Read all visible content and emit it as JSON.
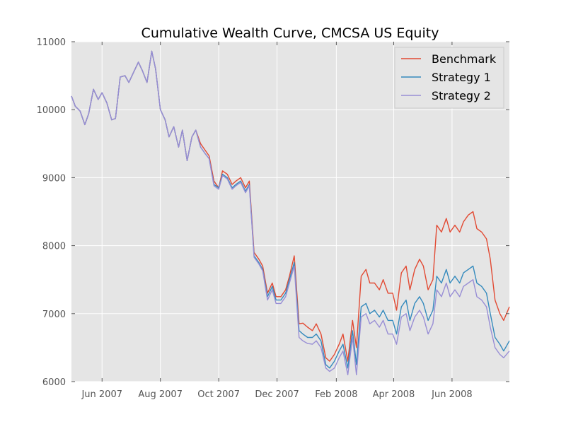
{
  "chart_data": {
    "type": "line",
    "title": "Cumulative Wealth Curve, CMCSA US Equity",
    "xlabel": "",
    "ylabel": "",
    "x_range": [
      "2007-04-30",
      "2008-07-31"
    ],
    "ylim": [
      6000,
      11000
    ],
    "y_ticks": [
      6000,
      7000,
      8000,
      9000,
      10000,
      11000
    ],
    "x_ticks": [
      {
        "date": "2007-06-01",
        "label": "Jun 2007"
      },
      {
        "date": "2007-08-01",
        "label": "Aug 2007"
      },
      {
        "date": "2007-10-01",
        "label": "Oct 2007"
      },
      {
        "date": "2007-12-01",
        "label": "Dec 2007"
      },
      {
        "date": "2008-02-01",
        "label": "Feb 2008"
      },
      {
        "date": "2008-04-01",
        "label": "Apr 2008"
      },
      {
        "date": "2008-06-01",
        "label": "Jun 2008"
      }
    ],
    "grid": true,
    "legend_position": "top-right",
    "x": [
      "2007-04-30",
      "2007-05-04",
      "2007-05-09",
      "2007-05-14",
      "2007-05-18",
      "2007-05-23",
      "2007-05-28",
      "2007-06-01",
      "2007-06-06",
      "2007-06-11",
      "2007-06-15",
      "2007-06-20",
      "2007-06-25",
      "2007-06-29",
      "2007-07-04",
      "2007-07-09",
      "2007-07-13",
      "2007-07-18",
      "2007-07-23",
      "2007-07-27",
      "2007-08-01",
      "2007-08-06",
      "2007-08-10",
      "2007-08-15",
      "2007-08-20",
      "2007-08-24",
      "2007-08-29",
      "2007-09-03",
      "2007-09-07",
      "2007-09-12",
      "2007-09-17",
      "2007-09-21",
      "2007-09-26",
      "2007-10-01",
      "2007-10-05",
      "2007-10-10",
      "2007-10-15",
      "2007-10-19",
      "2007-10-24",
      "2007-10-29",
      "2007-11-02",
      "2007-11-07",
      "2007-11-12",
      "2007-11-16",
      "2007-11-21",
      "2007-11-26",
      "2007-11-30",
      "2007-12-05",
      "2007-12-10",
      "2007-12-14",
      "2007-12-19",
      "2007-12-24",
      "2007-12-28",
      "2008-01-02",
      "2008-01-07",
      "2008-01-11",
      "2008-01-16",
      "2008-01-21",
      "2008-01-25",
      "2008-01-30",
      "2008-02-04",
      "2008-02-08",
      "2008-02-13",
      "2008-02-18",
      "2008-02-22",
      "2008-02-27",
      "2008-03-03",
      "2008-03-07",
      "2008-03-12",
      "2008-03-17",
      "2008-03-21",
      "2008-03-26",
      "2008-03-31",
      "2008-04-04",
      "2008-04-09",
      "2008-04-14",
      "2008-04-18",
      "2008-04-23",
      "2008-04-28",
      "2008-05-02",
      "2008-05-07",
      "2008-05-12",
      "2008-05-16",
      "2008-05-21",
      "2008-05-26",
      "2008-05-30",
      "2008-06-04",
      "2008-06-09",
      "2008-06-13",
      "2008-06-18",
      "2008-06-23",
      "2008-06-27",
      "2008-07-02",
      "2008-07-07",
      "2008-07-11",
      "2008-07-16",
      "2008-07-21",
      "2008-07-25",
      "2008-07-31"
    ],
    "series": [
      {
        "name": "Benchmark",
        "color": "#e24a33",
        "values": [
          10200,
          10050,
          9980,
          9780,
          9940,
          10300,
          10150,
          10250,
          10100,
          9850,
          9870,
          10480,
          10500,
          10400,
          10550,
          10700,
          10580,
          10400,
          10860,
          10600,
          10000,
          9850,
          9600,
          9750,
          9450,
          9700,
          9250,
          9600,
          9700,
          9500,
          9400,
          9320,
          8950,
          8850,
          9100,
          9050,
          8900,
          8950,
          9000,
          8850,
          8950,
          7900,
          7800,
          7700,
          7300,
          7450,
          7250,
          7250,
          7350,
          7550,
          7850,
          6850,
          6860,
          6800,
          6750,
          6850,
          6700,
          6350,
          6300,
          6400,
          6550,
          6700,
          6300,
          6900,
          6500,
          7550,
          7650,
          7450,
          7450,
          7350,
          7500,
          7300,
          7300,
          7050,
          7600,
          7700,
          7350,
          7650,
          7800,
          7700,
          7350,
          7500,
          8300,
          8200,
          8400,
          8200,
          8300,
          8200,
          8350,
          8450,
          8500,
          8250,
          8200,
          8100,
          7800,
          7200,
          7000,
          6900,
          7100
        ]
      },
      {
        "name": "Strategy 1",
        "color": "#348abd",
        "values": [
          10200,
          10050,
          9980,
          9780,
          9940,
          10300,
          10150,
          10250,
          10100,
          9850,
          9870,
          10480,
          10500,
          10400,
          10550,
          10700,
          10580,
          10400,
          10860,
          10600,
          10000,
          9850,
          9600,
          9750,
          9450,
          9700,
          9250,
          9600,
          9700,
          9450,
          9350,
          9280,
          8900,
          8850,
          9050,
          9000,
          8850,
          8900,
          8950,
          8800,
          8900,
          7850,
          7750,
          7650,
          7250,
          7400,
          7200,
          7200,
          7300,
          7500,
          7750,
          6750,
          6700,
          6650,
          6650,
          6700,
          6600,
          6250,
          6200,
          6300,
          6450,
          6550,
          6200,
          6750,
          6250,
          7100,
          7150,
          7000,
          7050,
          6950,
          7050,
          6900,
          6900,
          6700,
          7100,
          7200,
          6900,
          7150,
          7250,
          7150,
          6900,
          7050,
          7550,
          7450,
          7650,
          7450,
          7550,
          7450,
          7600,
          7650,
          7700,
          7450,
          7400,
          7300,
          7000,
          6650,
          6550,
          6450,
          6600
        ]
      },
      {
        "name": "Strategy 2",
        "color": "#988ed5",
        "values": [
          10200,
          10050,
          9980,
          9780,
          9940,
          10300,
          10150,
          10250,
          10100,
          9850,
          9870,
          10480,
          10500,
          10400,
          10550,
          10700,
          10580,
          10400,
          10860,
          10600,
          10000,
          9850,
          9600,
          9750,
          9450,
          9700,
          9250,
          9600,
          9700,
          9450,
          9350,
          9280,
          8880,
          8830,
          9030,
          8980,
          8830,
          8880,
          8930,
          8780,
          8880,
          7830,
          7730,
          7630,
          7200,
          7350,
          7150,
          7150,
          7250,
          7450,
          7700,
          6650,
          6600,
          6560,
          6550,
          6600,
          6500,
          6200,
          6150,
          6200,
          6350,
          6450,
          6100,
          6650,
          6100,
          6950,
          7000,
          6850,
          6900,
          6800,
          6900,
          6700,
          6700,
          6550,
          6950,
          7000,
          6750,
          6950,
          7050,
          6950,
          6700,
          6850,
          7350,
          7250,
          7450,
          7250,
          7350,
          7250,
          7400,
          7450,
          7500,
          7250,
          7200,
          7100,
          6800,
          6500,
          6400,
          6350,
          6450
        ]
      }
    ]
  }
}
